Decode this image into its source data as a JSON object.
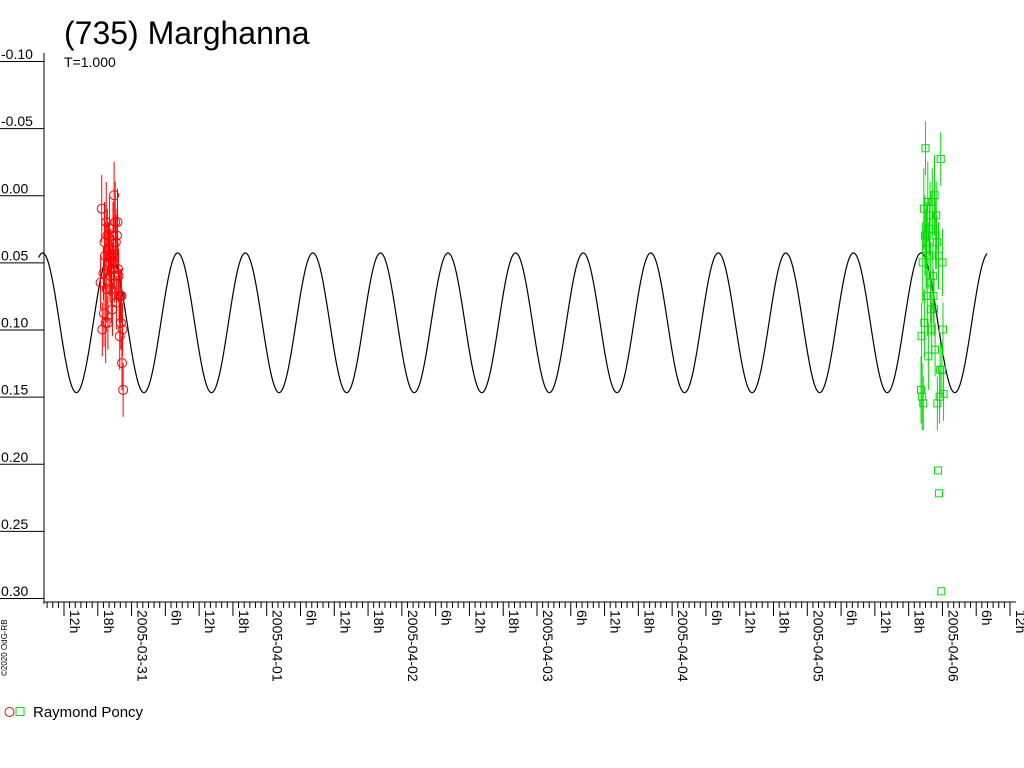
{
  "chart_data": {
    "type": "scatter",
    "title": "(735) Marghanna",
    "subtitle": "T=1.000",
    "y_inverted": true,
    "ylim": [
      -0.1,
      0.3
    ],
    "yticks": [
      -0.1,
      -0.05,
      0.0,
      0.05,
      0.1,
      0.15,
      0.2,
      0.25,
      0.3
    ],
    "ytick_labels": [
      "-0.10",
      "-0.05",
      "0.00",
      "0.05",
      "0.10",
      "0.15",
      "0.20",
      "0.25",
      "0.30"
    ],
    "x_units": "hours since 2005-03-30 00:00",
    "xlim": [
      7.5,
      176
    ],
    "xtick_labels": [
      {
        "x": 12,
        "label": "12h"
      },
      {
        "x": 18,
        "label": "18h"
      },
      {
        "x": 24,
        "label": "2005-03-31"
      },
      {
        "x": 30,
        "label": "6h"
      },
      {
        "x": 36,
        "label": "12h"
      },
      {
        "x": 42,
        "label": "18h"
      },
      {
        "x": 48,
        "label": "2005-04-01"
      },
      {
        "x": 54,
        "label": "6h"
      },
      {
        "x": 60,
        "label": "12h"
      },
      {
        "x": 66,
        "label": "18h"
      },
      {
        "x": 72,
        "label": "2005-04-02"
      },
      {
        "x": 78,
        "label": "6h"
      },
      {
        "x": 84,
        "label": "12h"
      },
      {
        "x": 90,
        "label": "18h"
      },
      {
        "x": 96,
        "label": "2005-04-03"
      },
      {
        "x": 102,
        "label": "6h"
      },
      {
        "x": 108,
        "label": "12h"
      },
      {
        "x": 114,
        "label": "18h"
      },
      {
        "x": 120,
        "label": "2005-04-04"
      },
      {
        "x": 126,
        "label": "6h"
      },
      {
        "x": 132,
        "label": "12h"
      },
      {
        "x": 138,
        "label": "18h"
      },
      {
        "x": 144,
        "label": "2005-04-05"
      },
      {
        "x": 150,
        "label": "6h"
      },
      {
        "x": 156,
        "label": "12h"
      },
      {
        "x": 162,
        "label": "18h"
      },
      {
        "x": 168,
        "label": "2005-04-06"
      },
      {
        "x": 174,
        "label": "6h"
      },
      {
        "x": 180,
        "label": "12h"
      }
    ],
    "fit_curve": {
      "type": "sine",
      "period_hours": 12.0,
      "mean": 0.095,
      "amplitude": 0.052,
      "phase_peak_hours": 8.2
    },
    "series": [
      {
        "name": "Raymond Poncy",
        "color": "#ff0000",
        "marker": "circle",
        "points": [
          [
            18.5,
            0.065,
            0.02
          ],
          [
            18.7,
            0.01,
            0.025
          ],
          [
            18.8,
            0.1,
            0.02
          ],
          [
            19.0,
            0.058,
            0.02
          ],
          [
            19.1,
            0.088,
            0.025
          ],
          [
            19.2,
            0.035,
            0.03
          ],
          [
            19.3,
            0.045,
            0.025
          ],
          [
            19.4,
            0.095,
            0.03
          ],
          [
            19.5,
            0.02,
            0.03
          ],
          [
            19.6,
            0.07,
            0.025
          ],
          [
            19.7,
            0.03,
            0.02
          ],
          [
            19.8,
            0.095,
            0.02
          ],
          [
            19.9,
            0.04,
            0.02
          ],
          [
            20.0,
            0.05,
            0.025
          ],
          [
            20.1,
            0.025,
            0.025
          ],
          [
            20.2,
            0.06,
            0.02
          ],
          [
            20.3,
            0.045,
            0.02
          ],
          [
            20.4,
            0.07,
            0.025
          ],
          [
            20.5,
            0.055,
            0.02
          ],
          [
            20.6,
            0.085,
            0.02
          ],
          [
            20.7,
            0.03,
            0.025
          ],
          [
            20.8,
            0.05,
            0.02
          ],
          [
            20.9,
            0.0,
            0.025
          ],
          [
            21.0,
            0.06,
            0.02
          ],
          [
            21.1,
            0.02,
            0.03
          ],
          [
            21.2,
            0.035,
            0.02
          ],
          [
            21.3,
            0.08,
            0.02
          ],
          [
            21.4,
            0.03,
            0.02
          ],
          [
            21.5,
            0.02,
            0.025
          ],
          [
            21.6,
            0.055,
            0.02
          ],
          [
            21.7,
            0.06,
            0.02
          ],
          [
            21.8,
            0.075,
            0.02
          ],
          [
            21.9,
            0.105,
            0.025
          ],
          [
            22.0,
            0.075,
            0.02
          ],
          [
            22.1,
            0.095,
            0.02
          ],
          [
            22.2,
            0.075,
            0.02
          ],
          [
            22.3,
            0.125,
            0.02
          ],
          [
            22.4,
            0.1,
            0.02
          ],
          [
            22.5,
            0.145,
            0.02
          ]
        ]
      },
      {
        "name": "Raymond Poncy",
        "color": "#00dd00",
        "marker": "square",
        "points": [
          [
            164.2,
            0.145,
            0.025
          ],
          [
            164.3,
            0.105,
            0.025
          ],
          [
            164.4,
            0.15,
            0.025
          ],
          [
            164.5,
            0.05,
            0.03
          ],
          [
            164.6,
            0.155,
            0.02
          ],
          [
            164.7,
            0.01,
            0.03
          ],
          [
            164.8,
            0.095,
            0.025
          ],
          [
            164.9,
            0.03,
            0.03
          ],
          [
            165.0,
            -0.035,
            0.02
          ],
          [
            165.1,
            0.04,
            0.03
          ],
          [
            165.2,
            0.03,
            0.025
          ],
          [
            165.3,
            0.075,
            0.03
          ],
          [
            165.4,
            0.005,
            0.03
          ],
          [
            165.5,
            0.12,
            0.025
          ],
          [
            165.6,
            0.045,
            0.025
          ],
          [
            165.7,
            0.025,
            0.02
          ],
          [
            165.8,
            0.015,
            0.025
          ],
          [
            165.9,
            0.065,
            0.03
          ],
          [
            166.0,
            0.085,
            0.02
          ],
          [
            166.1,
            0.1,
            0.02
          ],
          [
            166.2,
            0.005,
            0.025
          ],
          [
            166.3,
            0.06,
            0.025
          ],
          [
            166.4,
            0.075,
            0.02
          ],
          [
            166.5,
            0.085,
            0.02
          ],
          [
            166.6,
            0.0,
            0.03
          ],
          [
            166.7,
            0.115,
            0.02
          ],
          [
            166.8,
            0.03,
            0.025
          ],
          [
            166.9,
            0.015,
            0.025
          ],
          [
            167.0,
            0.035,
            0.02
          ],
          [
            167.1,
            0.155,
            0.02
          ],
          [
            167.2,
            0.205,
            0.0
          ],
          [
            167.3,
            0.045,
            0.025
          ],
          [
            167.4,
            0.222,
            0.0
          ],
          [
            167.5,
            0.15,
            0.02
          ],
          [
            167.6,
            0.13,
            0.02
          ],
          [
            167.7,
            -0.027,
            0.02
          ],
          [
            167.8,
            0.295,
            0.0
          ],
          [
            167.9,
            0.13,
            0.02
          ],
          [
            168.0,
            0.05,
            0.025
          ],
          [
            168.1,
            0.1,
            0.02
          ],
          [
            168.2,
            0.148,
            0.02
          ]
        ]
      }
    ],
    "legend": {
      "label": "Raymond Poncy",
      "placement": "bottom-left"
    },
    "credit": "©2020 OdG-RB"
  }
}
